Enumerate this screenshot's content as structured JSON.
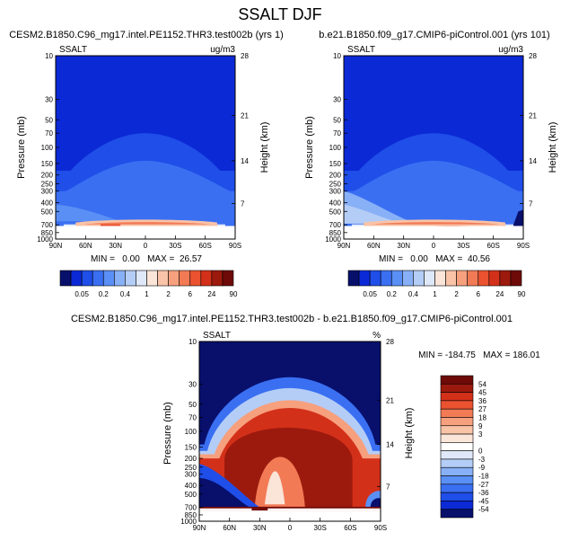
{
  "page": {
    "title": "SSALT DJF"
  },
  "colors": {
    "abs_scale": [
      "#08106c",
      "#0b2ad6",
      "#1f4ee8",
      "#3a6ff2",
      "#5a8ff5",
      "#88b0f6",
      "#b4cdf6",
      "#dfe8f8",
      "#fbe4d8",
      "#f9c3a7",
      "#f6a07e",
      "#f27a55",
      "#ea5230",
      "#d3301a",
      "#9c1a0d",
      "#6e0a08"
    ],
    "diff_scale": [
      "#08106c",
      "#0b2ad6",
      "#1f4ee8",
      "#3a6ff2",
      "#5a8ff5",
      "#88b0f6",
      "#b4cdf6",
      "#dfe8f8",
      "#ffffff",
      "#fbe4d8",
      "#f9c3a7",
      "#f6a07e",
      "#f27a55",
      "#ea5230",
      "#d3301a",
      "#9c1a0d",
      "#6e0a08"
    ]
  },
  "chart_data": [
    {
      "type": "heatmap",
      "id": "case1",
      "title": "CESM2.B1850.C96_mg17.intel.PE1152.THR3.test002b (yrs 1)",
      "variable_label": "SSALT",
      "units_label": "ug/m3",
      "xlabel": "",
      "ylabel": "Pressure (mb)",
      "ylabel_right": "Height (km)",
      "x_ticks": [
        "90N",
        "60N",
        "30N",
        "0",
        "30S",
        "60S",
        "90S"
      ],
      "x_range": [
        90,
        -90
      ],
      "y_ticks": [
        "10",
        "30",
        "50",
        "70",
        "100",
        "150",
        "200",
        "250",
        "300",
        "400",
        "500",
        "700",
        "850",
        "1000"
      ],
      "y_range_mb": [
        10,
        1000
      ],
      "y_scale": "log",
      "height_ticks_km": [
        "28",
        "21",
        "14",
        "7"
      ],
      "stats": "MIN =   0.00   MAX =  26.57",
      "colorbar_labels": [
        "0.05",
        "0.2",
        "0.4",
        "1",
        "2",
        "6",
        "24",
        "90"
      ]
    },
    {
      "type": "heatmap",
      "id": "case2",
      "title": "b.e21.B1850.f09_g17.CMIP6-piControl.001 (yrs 101)",
      "variable_label": "SSALT",
      "units_label": "ug/m3",
      "xlabel": "",
      "ylabel": "Pressure (mb)",
      "ylabel_right": "Height (km)",
      "x_ticks": [
        "90N",
        "60N",
        "30N",
        "0",
        "30S",
        "60S",
        "90S"
      ],
      "x_range": [
        90,
        -90
      ],
      "y_ticks": [
        "10",
        "30",
        "50",
        "70",
        "100",
        "150",
        "200",
        "250",
        "300",
        "400",
        "500",
        "700",
        "850",
        "1000"
      ],
      "y_range_mb": [
        10,
        1000
      ],
      "y_scale": "log",
      "height_ticks_km": [
        "28",
        "21",
        "14",
        "7"
      ],
      "stats": "MIN =   0.00   MAX =  40.56",
      "colorbar_labels": [
        "0.05",
        "0.2",
        "0.4",
        "1",
        "2",
        "6",
        "24",
        "90"
      ]
    },
    {
      "type": "heatmap",
      "id": "diff",
      "title": "CESM2.B1850.C96_mg17.intel.PE1152.THR3.test002b - b.e21.B1850.f09_g17.CMIP6-piControl.001",
      "variable_label": "SSALT",
      "units_label": "%",
      "xlabel": "",
      "ylabel": "Pressure (mb)",
      "ylabel_right": "Height (km)",
      "x_ticks": [
        "90N",
        "60N",
        "30N",
        "0",
        "30S",
        "60S",
        "90S"
      ],
      "x_range": [
        90,
        -90
      ],
      "y_ticks": [
        "10",
        "30",
        "50",
        "70",
        "100",
        "150",
        "200",
        "250",
        "300",
        "400",
        "500",
        "700",
        "850",
        "1000"
      ],
      "y_range_mb": [
        10,
        1000
      ],
      "y_scale": "log",
      "height_ticks_km": [
        "28",
        "21",
        "14",
        "7"
      ],
      "stats": "MIN = -184.75   MAX = 186.01",
      "colorbar_labels": [
        "54",
        "45",
        "36",
        "27",
        "18",
        "9",
        "3",
        "0",
        "-3",
        "-9",
        "-18",
        "-27",
        "-36",
        "-45",
        "-54"
      ]
    }
  ]
}
